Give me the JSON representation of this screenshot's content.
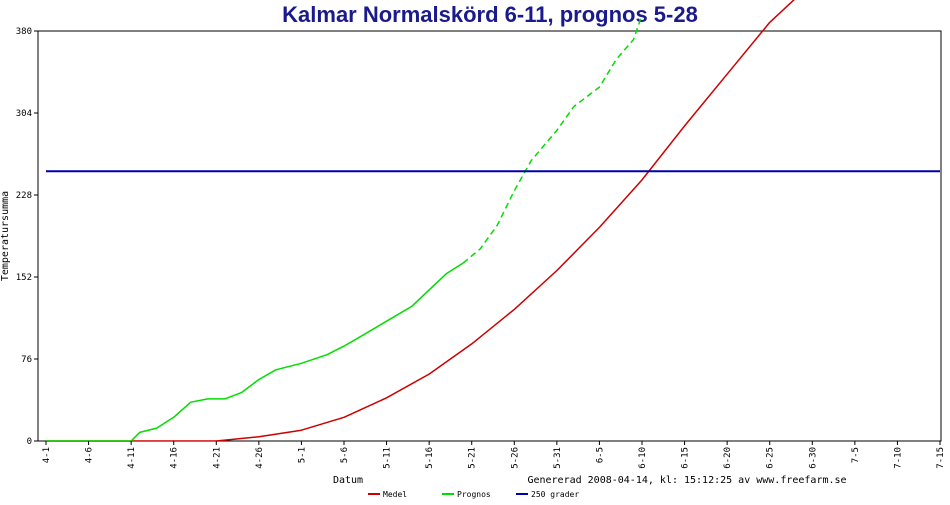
{
  "chart_data": {
    "type": "line",
    "title": "Kalmar Normalskörd 6-11, prognos 5-28",
    "xlabel": "Datum",
    "ylabel": "Temperatursumma",
    "footer": "Genererad 2008-04-14, kl: 15:12:25 av www.freefarm.se",
    "ylim": [
      0,
      380
    ],
    "y_ticks": [
      "0",
      "76",
      "152",
      "228",
      "304",
      "380"
    ],
    "x_tick_labels": [
      "4-1",
      "4-6",
      "4-11",
      "4-16",
      "4-21",
      "4-26",
      "5-1",
      "5-6",
      "5-11",
      "5-16",
      "5-21",
      "5-26",
      "5-31",
      "6-5",
      "6-10",
      "6-15",
      "6-20",
      "6-25",
      "6-30",
      "7-5",
      "7-10",
      "7-15"
    ],
    "grid": false,
    "legend_position": "bottom",
    "series": [
      {
        "name": "Medel",
        "color": "#cc0000",
        "style": "solid",
        "x": [
          "4-1",
          "4-6",
          "4-11",
          "4-16",
          "4-21",
          "4-26",
          "5-1",
          "5-6",
          "5-11",
          "5-16",
          "5-21",
          "5-26",
          "5-31",
          "6-5",
          "6-10",
          "6-15",
          "6-20",
          "6-25",
          "6-28"
        ],
        "values": [
          0,
          0,
          0,
          0,
          0,
          4,
          10,
          22,
          40,
          62,
          90,
          122,
          158,
          198,
          242,
          292,
          340,
          388,
          410
        ]
      },
      {
        "name": "Prognos",
        "color": "#00dd00",
        "style": "solid",
        "x": [
          "4-1",
          "4-6",
          "4-11",
          "4-12",
          "4-14",
          "4-16",
          "4-18",
          "4-20",
          "4-22",
          "4-24",
          "4-26",
          "4-28",
          "5-1",
          "5-4",
          "5-6",
          "5-8",
          "5-11",
          "5-14",
          "5-16",
          "5-18",
          "5-20"
        ],
        "values": [
          0,
          0,
          0,
          8,
          12,
          22,
          36,
          39,
          39,
          45,
          57,
          66,
          72,
          80,
          88,
          97,
          111,
          125,
          140,
          155,
          165
        ]
      },
      {
        "name": "Prognos",
        "color": "#00dd00",
        "style": "dashed",
        "x": [
          "5-20",
          "5-22",
          "5-24",
          "5-26",
          "5-28",
          "5-31",
          "6-2",
          "6-5",
          "6-7",
          "6-9",
          "6-10"
        ],
        "values": [
          165,
          178,
          200,
          232,
          260,
          288,
          310,
          328,
          354,
          372,
          395
        ]
      },
      {
        "name": "250 grader",
        "color": "#0000aa",
        "style": "solid",
        "x": [
          "4-1",
          "7-15"
        ],
        "values": [
          250,
          250
        ]
      }
    ]
  }
}
